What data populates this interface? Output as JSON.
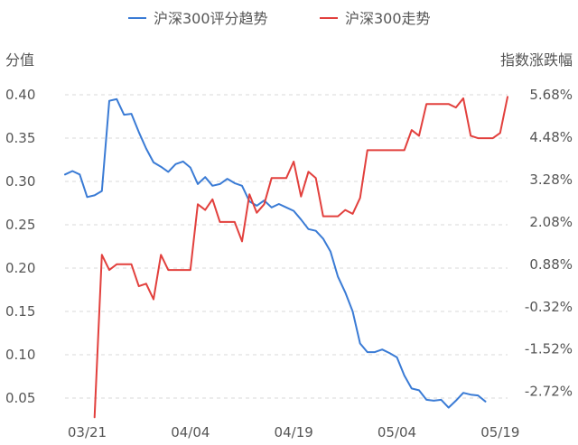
{
  "chart_data": {
    "type": "line",
    "left_axis_title": "分值",
    "right_axis_title": "指数涨跌幅",
    "x_ticks": [
      "03/21",
      "04/04",
      "04/19",
      "05/04",
      "05/19"
    ],
    "y_left": {
      "min": 0.025,
      "max": 0.4,
      "ticks": [
        0.05,
        0.1,
        0.15,
        0.2,
        0.25,
        0.3,
        0.35,
        0.4
      ],
      "tick_labels": [
        "0.05",
        "0.10",
        "0.15",
        "0.20",
        "0.25",
        "0.30",
        "0.35",
        "0.40"
      ]
    },
    "y_right": {
      "min": -3.52,
      "max": 5.68,
      "ticks": [
        -2.72,
        -1.52,
        -0.32,
        0.88,
        2.08,
        3.28,
        4.48,
        5.68
      ],
      "tick_labels": [
        "-2.72%",
        "-1.52%",
        "-0.32%",
        "0.88%",
        "2.08%",
        "3.28%",
        "4.48%",
        "5.68%"
      ]
    },
    "x_range": [
      0,
      60
    ],
    "x_tick_positions": [
      3,
      17,
      31,
      45,
      59
    ],
    "grid": "horizontal dashed",
    "legend_position": "top-center",
    "series": [
      {
        "name": "沪深300评分趋势",
        "axis": "left",
        "color": "#3a7bd5",
        "x": [
          0,
          1,
          2,
          3,
          4,
          5,
          6,
          7,
          8,
          9,
          10,
          11,
          12,
          13,
          14,
          15,
          16,
          17,
          18,
          19,
          20,
          21,
          22,
          23,
          24,
          25,
          26,
          27,
          28,
          29,
          30,
          31,
          32,
          33,
          34,
          35,
          36,
          37,
          38,
          39,
          40,
          41,
          42,
          43,
          44,
          45,
          46,
          47,
          48,
          49,
          50,
          51,
          52,
          53,
          54,
          55,
          56,
          57
        ],
        "values": [
          0.308,
          0.312,
          0.308,
          0.282,
          0.284,
          0.289,
          0.393,
          0.395,
          0.377,
          0.378,
          0.357,
          0.338,
          0.322,
          0.317,
          0.311,
          0.32,
          0.323,
          0.316,
          0.297,
          0.305,
          0.295,
          0.297,
          0.303,
          0.298,
          0.295,
          0.277,
          0.272,
          0.278,
          0.27,
          0.274,
          0.27,
          0.266,
          0.256,
          0.245,
          0.243,
          0.234,
          0.219,
          0.19,
          0.172,
          0.15,
          0.113,
          0.103,
          0.103,
          0.106,
          0.102,
          0.097,
          0.076,
          0.061,
          0.059,
          0.048,
          0.047,
          0.048,
          0.039,
          0.047,
          0.056,
          0.054,
          0.053,
          0.046
        ]
      },
      {
        "name": "沪深300走势",
        "axis": "right",
        "color": "#e2403d",
        "x": [
          4,
          5,
          6,
          7,
          8,
          9,
          10,
          11,
          12,
          13,
          14,
          15,
          16,
          17,
          18,
          19,
          20,
          21,
          22,
          23,
          24,
          25,
          26,
          27,
          28,
          29,
          30,
          31,
          32,
          33,
          34,
          35,
          36,
          37,
          38,
          39,
          40,
          41,
          42,
          43,
          44,
          45,
          46,
          47,
          48,
          49,
          50,
          51,
          52,
          53,
          54,
          55,
          56,
          57,
          58,
          59,
          60
        ],
        "values": [
          -3.45,
          1.15,
          0.72,
          0.88,
          0.88,
          0.88,
          0.26,
          0.33,
          -0.11,
          1.15,
          0.72,
          0.72,
          0.72,
          0.72,
          2.58,
          2.42,
          2.72,
          2.08,
          2.08,
          2.08,
          1.53,
          2.86,
          2.34,
          2.58,
          3.32,
          3.32,
          3.32,
          3.79,
          2.8,
          3.5,
          3.32,
          2.24,
          2.24,
          2.24,
          2.42,
          2.31,
          2.76,
          4.11,
          4.11,
          4.11,
          4.11,
          4.11,
          4.11,
          4.68,
          4.52,
          5.42,
          5.42,
          5.42,
          5.42,
          5.32,
          5.58,
          4.52,
          4.45,
          4.45,
          4.45,
          4.6,
          5.62
        ]
      }
    ]
  }
}
